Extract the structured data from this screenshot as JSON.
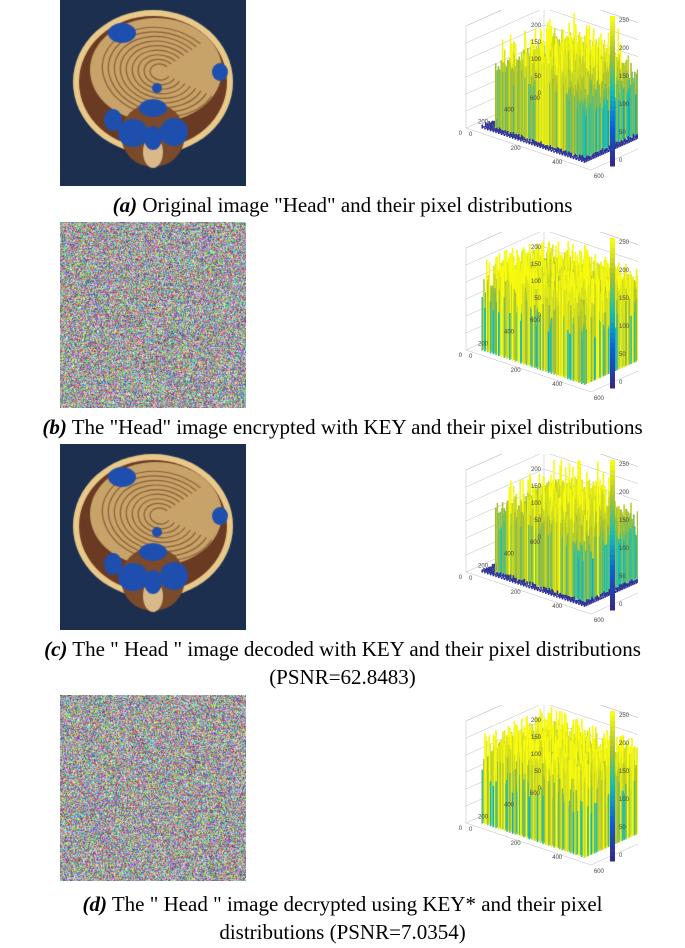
{
  "captions": [
    {
      "label": "(a)",
      "text": " Original image \"Head\" and their pixel distributions",
      "line2": ""
    },
    {
      "label": "(b)",
      "text": " The \"Head\" image encrypted with KEY and their pixel distributions",
      "line2": ""
    },
    {
      "label": "(c)",
      "text": " The \" Head \" image decoded with KEY and their pixel distributions",
      "line2": "(PSNR=62.8483)"
    },
    {
      "label": "(d)",
      "text": " The \" Head \" image decrypted using KEY* and their pixel",
      "line2": "distributions (PSNR=7.0354)"
    }
  ],
  "plot_ticks": {
    "z": [
      "300",
      "250",
      "200",
      "150",
      "100",
      "50",
      "0"
    ],
    "y_axis": [
      "600",
      "400",
      "200",
      "0"
    ],
    "x_axis": [
      "0",
      "200",
      "400",
      "600"
    ],
    "colorbar": [
      "250",
      "200",
      "150",
      "100",
      "50",
      "0"
    ]
  },
  "colors": {
    "head_blue": "#1f4fae",
    "slice_tan": "#c7a36a",
    "background_navy": "#1c2f4f",
    "plot_blue": "#3b3bd6",
    "plot_yellow": "#f5e33a"
  }
}
